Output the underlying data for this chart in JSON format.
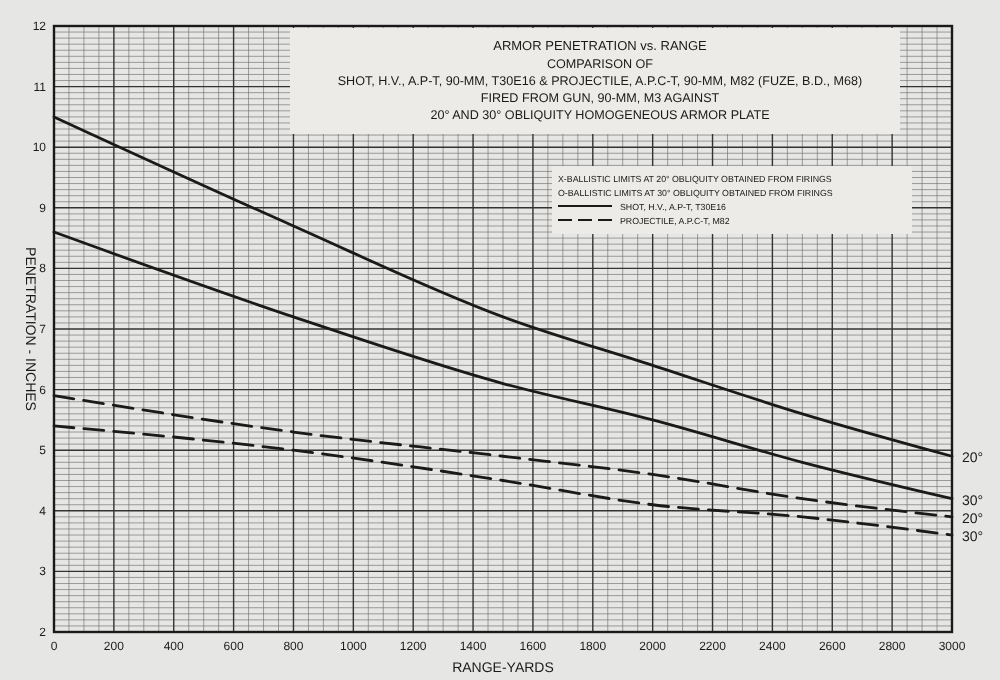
{
  "chart_data": {
    "type": "line",
    "title": "ARMOR PENETRATION vs. RANGE",
    "subtitle": "COMPARISON OF\nSHOT, H.V., A.P-T, 90-MM, T30E16 & PROJECTILE, A.P.C-T, 90-MM, M82 (FUZE, B.D., M68)\nFIRED FROM GUN, 90-MM, M3  AGAINST\n20° AND 30° OBLIQUITY HOMOGENEOUS ARMOR PLATE",
    "xlabel": "RANGE-YARDS",
    "ylabel": "PENETRATION - INCHES",
    "x": [
      0,
      800,
      1500,
      2000,
      2500,
      3000
    ],
    "series": [
      {
        "name": "20°",
        "color": "#1a1a1a",
        "line_style": "solid",
        "values": [
          10.5,
          8.7,
          7.2,
          6.4,
          5.6,
          4.9
        ]
      },
      {
        "name": "30°",
        "color": "#1a1a1a",
        "line_style": "solid",
        "values": [
          8.6,
          7.2,
          6.1,
          5.5,
          4.8,
          4.2
        ]
      },
      {
        "name": "20°",
        "color": "#1a1a1a",
        "line_style": "dashed",
        "values": [
          5.9,
          5.3,
          4.9,
          4.6,
          4.2,
          3.9
        ]
      },
      {
        "name": "30°",
        "color": "#1a1a1a",
        "line_style": "dashed",
        "values": [
          5.4,
          5.0,
          4.5,
          4.1,
          3.9,
          3.6
        ]
      }
    ],
    "xlim": [
      0,
      3000
    ],
    "xticks": [
      0,
      200,
      400,
      600,
      800,
      1000,
      1200,
      1400,
      1600,
      1800,
      2000,
      2200,
      2400,
      2600,
      2800,
      3000
    ],
    "ylim": [
      2,
      12
    ],
    "yticks": [
      2,
      3,
      4,
      5,
      6,
      7,
      8,
      9,
      10,
      11,
      12
    ],
    "grid": true,
    "marker": "none",
    "legend": "right",
    "annotations": [
      "X-BALLISTIC LIMITS AT 20° OBLIQUITY OBTAINED FROM FIRINGS",
      "O-BALLISTIC LIMITS AT 30° OBLIQUITY OBTAINED FROM FIRINGS",
      "SHOT, H.V., A.P-T, T30E16",
      "PROJECTILE, A.P.C-T, M82"
    ]
  }
}
